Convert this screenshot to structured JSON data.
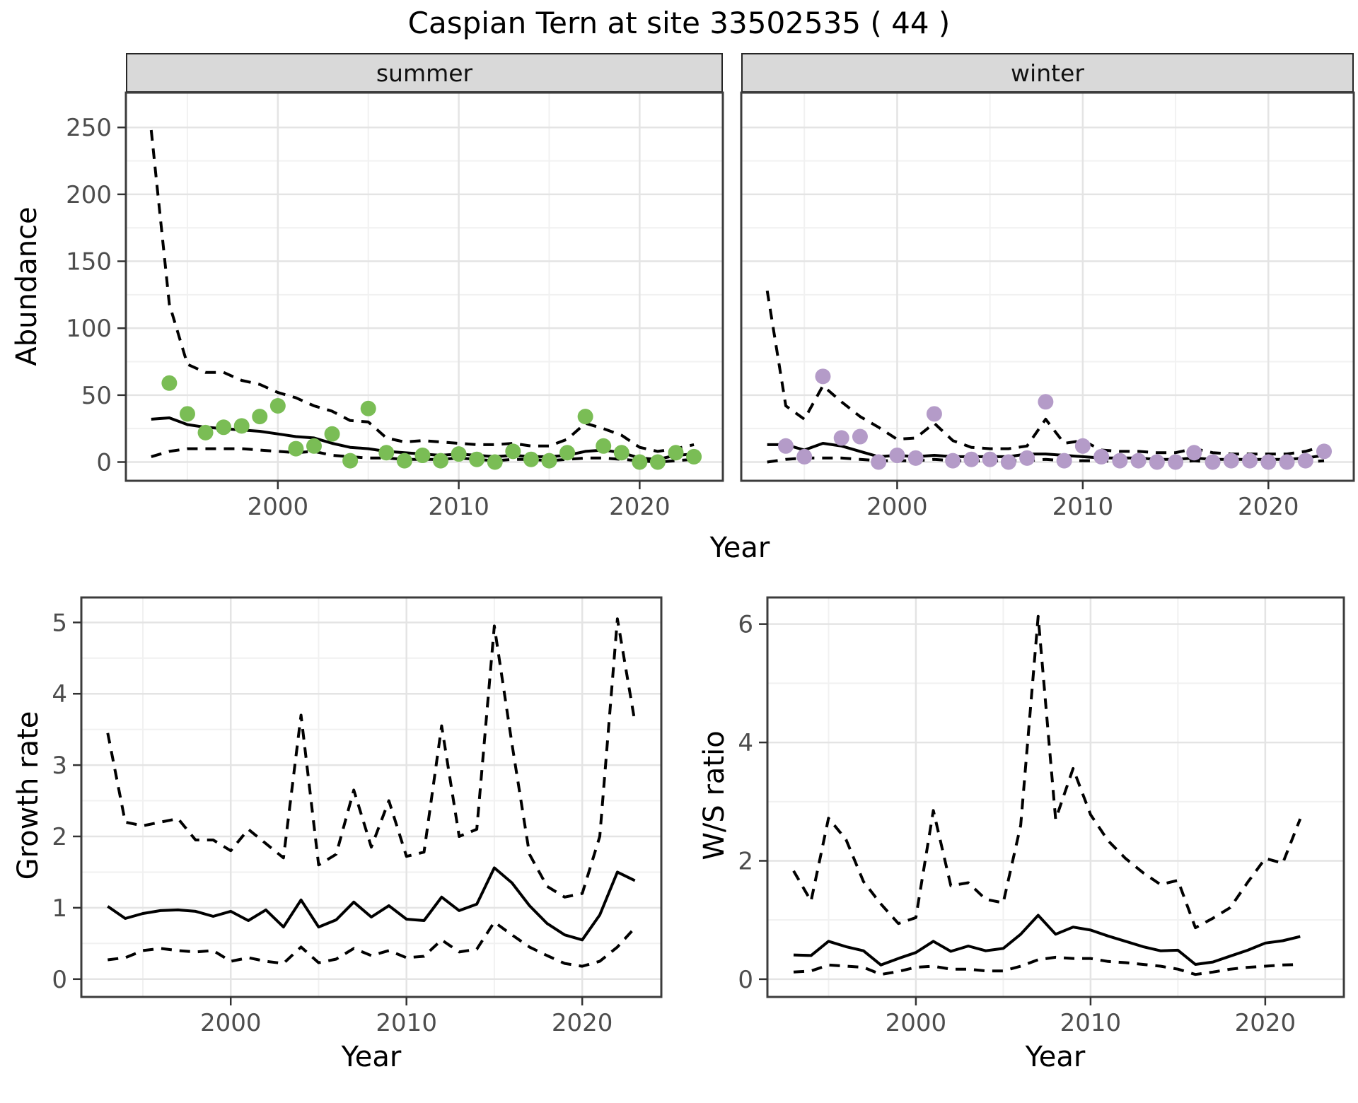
{
  "title": "Caspian Tern at site 33502535 ( 44 )",
  "facets": {
    "summer_label": "summer",
    "winter_label": "winter"
  },
  "axis_titles": {
    "abundance": "Abundance",
    "year_top": "Year",
    "growth": "Growth rate",
    "year_growth": "Year",
    "ws": "W/S ratio",
    "year_ws": "Year"
  },
  "colors": {
    "summer_point": "#7abd55",
    "winter_point": "#b49bc8",
    "line": "#000000",
    "strip_bg": "#d9d9d9",
    "panel_border": "#3c3c3c",
    "grid_major": "#e4e4e4",
    "grid_minor": "#f1f1f1",
    "axis_text": "#4d4d4d"
  },
  "chart_data": [
    {
      "type": "line",
      "panel": "abundance_summer",
      "facet": "summer",
      "title": "",
      "xlabel": "Year",
      "ylabel": "Abundance",
      "xlim": [
        1991.6,
        2024.6
      ],
      "ylim": [
        -14,
        276
      ],
      "xticks": [
        2000,
        2010,
        2020
      ],
      "xminor": [
        1995,
        2005,
        2015
      ],
      "yticks": [
        0,
        50,
        100,
        150,
        200,
        250
      ],
      "yminor": [
        25,
        75,
        125,
        175,
        225
      ],
      "show_y_tick_labels": true,
      "x": [
        1993,
        1994,
        1995,
        1996,
        1997,
        1998,
        1999,
        2000,
        2001,
        2002,
        2003,
        2004,
        2005,
        2006,
        2007,
        2008,
        2009,
        2010,
        2011,
        2012,
        2013,
        2014,
        2015,
        2016,
        2017,
        2018,
        2019,
        2020,
        2021,
        2022,
        2023
      ],
      "series": [
        {
          "name": "upper_ci",
          "style": "dashed",
          "values": [
            248,
            118,
            73,
            67,
            67,
            61,
            58,
            52,
            48,
            42,
            38,
            31,
            30,
            18,
            15,
            16,
            15,
            14,
            13,
            13,
            14,
            12,
            12,
            17,
            29,
            25,
            20,
            11,
            8,
            10,
            13
          ]
        },
        {
          "name": "lower_ci",
          "style": "dashed",
          "values": [
            4,
            8,
            10,
            10,
            10,
            10,
            9,
            8,
            7,
            8,
            5,
            4,
            3,
            3,
            2,
            2,
            2,
            3,
            2,
            1,
            2,
            2,
            1,
            2,
            3,
            3,
            2,
            1,
            0,
            1,
            2
          ]
        },
        {
          "name": "median",
          "style": "solid",
          "values": [
            32,
            33,
            28,
            26,
            25,
            24,
            23,
            21,
            19,
            18,
            14,
            11,
            10,
            8,
            7,
            6,
            5,
            6,
            5,
            4,
            5,
            4,
            4,
            5,
            8,
            9,
            7,
            3,
            2,
            5,
            6
          ]
        },
        {
          "name": "observed_counts",
          "style": "points",
          "color": "#7abd55",
          "x": [
            1994,
            1995,
            1996,
            1997,
            1998,
            1999,
            2000,
            2001,
            2002,
            2003,
            2004,
            2005,
            2006,
            2007,
            2008,
            2009,
            2010,
            2011,
            2012,
            2013,
            2014,
            2015,
            2016,
            2017,
            2018,
            2019,
            2020,
            2021,
            2022,
            2023
          ],
          "values": [
            59,
            36,
            22,
            26,
            27,
            34,
            42,
            10,
            12,
            21,
            1,
            40,
            7,
            1,
            5,
            1,
            6,
            2,
            0,
            8,
            2,
            1,
            7,
            34,
            12,
            7,
            0,
            0,
            7,
            4
          ]
        }
      ]
    },
    {
      "type": "line",
      "panel": "abundance_winter",
      "facet": "winter",
      "title": "",
      "xlabel": "Year",
      "ylabel": "Abundance",
      "xlim": [
        1991.6,
        2024.6
      ],
      "ylim": [
        -14,
        276
      ],
      "xticks": [
        2000,
        2010,
        2020
      ],
      "xminor": [
        1995,
        2005,
        2015
      ],
      "yticks": [
        0,
        50,
        100,
        150,
        200,
        250
      ],
      "yminor": [
        25,
        75,
        125,
        175,
        225
      ],
      "show_y_tick_labels": false,
      "x": [
        1993,
        1994,
        1995,
        1996,
        1997,
        1998,
        1999,
        2000,
        2001,
        2002,
        2003,
        2004,
        2005,
        2006,
        2007,
        2008,
        2009,
        2010,
        2011,
        2012,
        2013,
        2014,
        2015,
        2016,
        2017,
        2018,
        2019,
        2020,
        2021,
        2022,
        2023
      ],
      "series": [
        {
          "name": "upper_ci",
          "style": "dashed",
          "values": [
            128,
            42,
            32,
            57,
            45,
            34,
            26,
            17,
            18,
            29,
            16,
            11,
            10,
            10,
            12,
            32,
            14,
            16,
            9,
            8,
            8,
            7,
            7,
            10,
            7,
            6,
            6,
            6,
            6,
            8,
            12
          ]
        },
        {
          "name": "lower_ci",
          "style": "dashed",
          "values": [
            0,
            2,
            3,
            3,
            3,
            2,
            1,
            1,
            1,
            2,
            1,
            1,
            1,
            1,
            1,
            2,
            1,
            1,
            1,
            0,
            0,
            0,
            0,
            1,
            0,
            0,
            0,
            0,
            0,
            0,
            1
          ]
        },
        {
          "name": "median",
          "style": "solid",
          "values": [
            13,
            13,
            9,
            14,
            12,
            8,
            4,
            5,
            4,
            5,
            4,
            4,
            4,
            4,
            6,
            6,
            5,
            4,
            3,
            3,
            3,
            2,
            2,
            3,
            2,
            2,
            2,
            2,
            2,
            3,
            5
          ]
        },
        {
          "name": "observed_counts",
          "style": "points",
          "color": "#b49bc8",
          "x": [
            1994,
            1995,
            1996,
            1997,
            1998,
            1999,
            2000,
            2001,
            2002,
            2003,
            2004,
            2005,
            2006,
            2007,
            2008,
            2009,
            2010,
            2011,
            2012,
            2013,
            2014,
            2015,
            2016,
            2017,
            2018,
            2019,
            2020,
            2021,
            2022,
            2023
          ],
          "values": [
            12,
            4,
            64,
            18,
            19,
            0,
            5,
            3,
            36,
            1,
            2,
            2,
            0,
            3,
            45,
            1,
            12,
            4,
            1,
            1,
            0,
            0,
            7,
            0,
            1,
            1,
            0,
            0,
            1,
            8
          ]
        }
      ]
    },
    {
      "type": "line",
      "panel": "growth_rate",
      "title": "",
      "xlabel": "Year",
      "ylabel": "Growth rate",
      "xlim": [
        1991.5,
        2024.5
      ],
      "ylim": [
        -0.25,
        5.35
      ],
      "xticks": [
        2000,
        2010,
        2020
      ],
      "xminor": [
        1995,
        2005,
        2015
      ],
      "yticks": [
        0,
        1,
        2,
        3,
        4,
        5
      ],
      "yminor": [
        0.5,
        1.5,
        2.5,
        3.5,
        4.5
      ],
      "show_y_tick_labels": true,
      "x": [
        1993,
        1994,
        1995,
        1996,
        1997,
        1998,
        1999,
        2000,
        2001,
        2002,
        2003,
        2004,
        2005,
        2006,
        2007,
        2008,
        2009,
        2010,
        2011,
        2012,
        2013,
        2014,
        2015,
        2016,
        2017,
        2018,
        2019,
        2020,
        2021,
        2022,
        2023
      ],
      "series": [
        {
          "name": "upper_ci",
          "style": "dashed",
          "values": [
            3.45,
            2.2,
            2.15,
            2.2,
            2.25,
            1.95,
            1.95,
            1.8,
            2.1,
            1.9,
            1.7,
            3.7,
            1.6,
            1.75,
            2.65,
            1.85,
            2.5,
            1.72,
            1.78,
            3.55,
            2.0,
            2.1,
            4.95,
            3.3,
            1.75,
            1.3,
            1.15,
            1.2,
            2.0,
            5.05,
            3.6
          ]
        },
        {
          "name": "lower_ci",
          "style": "dashed",
          "values": [
            0.27,
            0.3,
            0.4,
            0.43,
            0.4,
            0.38,
            0.4,
            0.25,
            0.3,
            0.25,
            0.22,
            0.45,
            0.23,
            0.28,
            0.43,
            0.33,
            0.4,
            0.3,
            0.32,
            0.55,
            0.38,
            0.42,
            0.8,
            0.62,
            0.45,
            0.33,
            0.22,
            0.18,
            0.25,
            0.45,
            0.72
          ]
        },
        {
          "name": "median",
          "style": "solid",
          "values": [
            1.02,
            0.85,
            0.92,
            0.96,
            0.97,
            0.95,
            0.88,
            0.95,
            0.82,
            0.97,
            0.73,
            1.11,
            0.73,
            0.83,
            1.08,
            0.87,
            1.03,
            0.84,
            0.82,
            1.15,
            0.96,
            1.05,
            1.56,
            1.35,
            1.03,
            0.78,
            0.62,
            0.55,
            0.9,
            1.5,
            1.38
          ]
        }
      ]
    },
    {
      "type": "line",
      "panel": "ws_ratio",
      "title": "",
      "xlabel": "Year",
      "ylabel": "W/S ratio",
      "xlim": [
        1991.5,
        2024.5
      ],
      "ylim": [
        -0.3,
        6.45
      ],
      "xticks": [
        2000,
        2010,
        2020
      ],
      "xminor": [
        1995,
        2005,
        2015
      ],
      "yticks": [
        0,
        2,
        4,
        6
      ],
      "yminor": [
        1,
        3,
        5
      ],
      "show_y_tick_labels": true,
      "x": [
        1993,
        1994,
        1995,
        1996,
        1997,
        1998,
        1999,
        2000,
        2001,
        2002,
        2003,
        2004,
        2005,
        2006,
        2007,
        2008,
        2009,
        2010,
        2011,
        2012,
        2013,
        2014,
        2015,
        2016,
        2017,
        2018,
        2019,
        2020,
        2021,
        2022
      ],
      "series": [
        {
          "name": "upper_ci",
          "style": "dashed",
          "values": [
            1.83,
            1.32,
            2.72,
            2.36,
            1.65,
            1.27,
            0.94,
            1.04,
            2.85,
            1.58,
            1.63,
            1.35,
            1.29,
            2.6,
            6.13,
            2.7,
            3.56,
            2.78,
            2.34,
            2.04,
            1.8,
            1.6,
            1.67,
            0.87,
            1.03,
            1.21,
            1.64,
            2.04,
            1.96,
            2.71
          ]
        },
        {
          "name": "lower_ci",
          "style": "dashed",
          "values": [
            0.12,
            0.14,
            0.24,
            0.22,
            0.2,
            0.08,
            0.13,
            0.2,
            0.22,
            0.17,
            0.17,
            0.14,
            0.14,
            0.22,
            0.33,
            0.37,
            0.35,
            0.35,
            0.3,
            0.28,
            0.25,
            0.22,
            0.17,
            0.08,
            0.12,
            0.17,
            0.2,
            0.22,
            0.24,
            0.25
          ]
        },
        {
          "name": "median",
          "style": "solid",
          "values": [
            0.41,
            0.4,
            0.64,
            0.55,
            0.48,
            0.24,
            0.35,
            0.45,
            0.64,
            0.47,
            0.56,
            0.48,
            0.52,
            0.76,
            1.08,
            0.76,
            0.88,
            0.83,
            0.73,
            0.64,
            0.55,
            0.48,
            0.49,
            0.25,
            0.29,
            0.39,
            0.49,
            0.61,
            0.65,
            0.72
          ]
        }
      ]
    }
  ]
}
